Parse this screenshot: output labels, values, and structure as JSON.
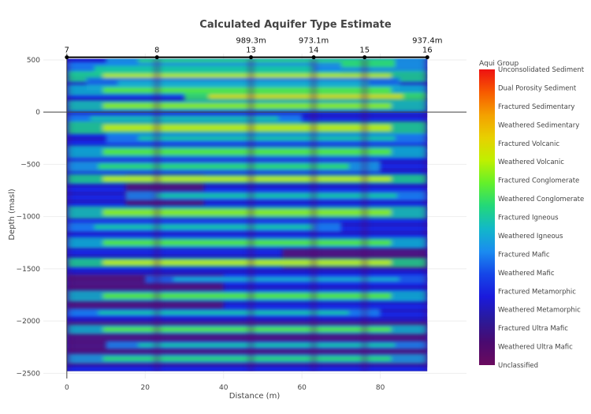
{
  "chart_data": {
    "type": "heatmap",
    "title": "Calculated Aquifer Type Estimate",
    "xlabel": "Distance (m)",
    "ylabel": "Depth (masl)",
    "xlim": [
      -6,
      102
    ],
    "ylim": [
      -2550,
      560
    ],
    "x_ticks": [
      0,
      20,
      40,
      60,
      80
    ],
    "y_ticks": [
      500,
      0,
      -500,
      -1000,
      -1500,
      -2000,
      -2500
    ],
    "y_tick_labels": [
      "500",
      "0",
      "−500",
      "−1000",
      "−1500",
      "−2000",
      "−2500"
    ],
    "data_x_range": [
      0,
      92
    ],
    "data_y_range": [
      -2480,
      510
    ],
    "zero_line": true,
    "wells": [
      {
        "name": "7",
        "x": 0,
        "elevation": ""
      },
      {
        "name": "8",
        "x": 23,
        "elevation": ""
      },
      {
        "name": "13",
        "x": 47,
        "elevation": "989.3m"
      },
      {
        "name": "14",
        "x": 63,
        "elevation": "973.1m"
      },
      {
        "name": "15",
        "x": 76,
        "elevation": ""
      },
      {
        "name": "16",
        "x": 92,
        "elevation": "937.4m"
      }
    ],
    "colorbar": {
      "title": "Aqui Group",
      "placement": "right",
      "classes": [
        "Unconsolidated Sediment",
        "Dual Porosity Sediment",
        "Fractured Sedimentary",
        "Weathered Sedimentary",
        "Fractured Volcanic",
        "Weathered Volcanic",
        "Fractured Conglomerate",
        "Weathered Conglomerate",
        "Fractured Igneous",
        "Weathered Igneous",
        "Fractured Mafic",
        "Weathered Mafic",
        "Fractured Metamorphic",
        "Weathered Metamorphic",
        "Fractured Ultra Mafic",
        "Weathered Ultra Mafic",
        "Unclassified"
      ],
      "colors_top_to_bottom": [
        "#ee1111",
        "#f75a00",
        "#f4a000",
        "#e8d000",
        "#bff000",
        "#63f02a",
        "#22d87a",
        "#12b8c8",
        "#1a8cf0",
        "#1546e8",
        "#1a1adc",
        "#2a1a9a",
        "#4a0a70",
        "#6a0a5e"
      ]
    },
    "bands": [
      {
        "y": 470,
        "h": 22,
        "x1": 10,
        "x2": 92,
        "level": 0.55
      },
      {
        "y": 410,
        "h": 18,
        "x1": 0,
        "x2": 70,
        "level": 0.5
      },
      {
        "y": 340,
        "h": 14,
        "x1": 0,
        "x2": 92,
        "level": 0.7
      },
      {
        "y": 270,
        "h": 16,
        "x1": 5,
        "x2": 85,
        "level": 0.45
      },
      {
        "y": 210,
        "h": 14,
        "x1": 0,
        "x2": 92,
        "level": 0.6
      },
      {
        "y": 150,
        "h": 10,
        "x1": 30,
        "x2": 92,
        "level": 0.75
      },
      {
        "y": 60,
        "h": 14,
        "x1": 0,
        "x2": 92,
        "level": 0.65
      },
      {
        "y": -60,
        "h": 10,
        "x1": 0,
        "x2": 60,
        "level": 0.5
      },
      {
        "y": -150,
        "h": 16,
        "x1": 0,
        "x2": 92,
        "level": 0.7
      },
      {
        "y": -250,
        "h": 12,
        "x1": 10,
        "x2": 92,
        "level": 0.5
      },
      {
        "y": -380,
        "h": 16,
        "x1": 0,
        "x2": 92,
        "level": 0.6
      },
      {
        "y": -520,
        "h": 14,
        "x1": 0,
        "x2": 80,
        "level": 0.55
      },
      {
        "y": -640,
        "h": 12,
        "x1": 0,
        "x2": 92,
        "level": 0.7
      },
      {
        "y": -800,
        "h": 12,
        "x1": 15,
        "x2": 92,
        "level": 0.5
      },
      {
        "y": -960,
        "h": 16,
        "x1": 0,
        "x2": 92,
        "level": 0.65
      },
      {
        "y": -1100,
        "h": 12,
        "x1": 0,
        "x2": 70,
        "level": 0.5
      },
      {
        "y": -1250,
        "h": 14,
        "x1": 0,
        "x2": 92,
        "level": 0.6
      },
      {
        "y": -1440,
        "h": 12,
        "x1": 0,
        "x2": 92,
        "level": 0.7
      },
      {
        "y": -1600,
        "h": 10,
        "x1": 20,
        "x2": 92,
        "level": 0.45
      },
      {
        "y": -1760,
        "h": 14,
        "x1": 0,
        "x2": 92,
        "level": 0.6
      },
      {
        "y": -1920,
        "h": 10,
        "x1": 0,
        "x2": 80,
        "level": 0.5
      },
      {
        "y": -2080,
        "h": 12,
        "x1": 0,
        "x2": 92,
        "level": 0.6
      },
      {
        "y": -2230,
        "h": 10,
        "x1": 10,
        "x2": 92,
        "level": 0.5
      },
      {
        "y": -2360,
        "h": 12,
        "x1": 0,
        "x2": 92,
        "level": 0.55
      }
    ],
    "magenta_zones": [
      {
        "y1": -1550,
        "y2": -1900,
        "x1": 0,
        "x2": 40
      },
      {
        "y1": -2000,
        "y2": -2420,
        "x1": 0,
        "x2": 92
      },
      {
        "y1": -600,
        "y2": -900,
        "x1": 15,
        "x2": 35
      },
      {
        "y1": -1300,
        "y2": -1500,
        "x1": 55,
        "x2": 92
      }
    ]
  }
}
